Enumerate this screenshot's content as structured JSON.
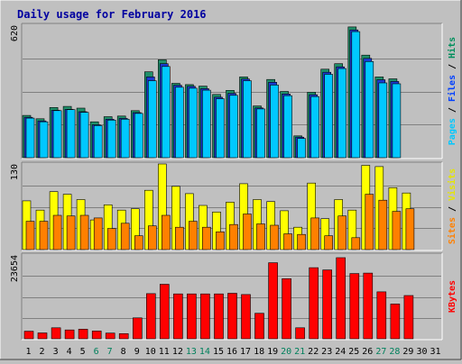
{
  "chart_data": {
    "title": "Daily usage for February 2016",
    "type": "bar",
    "categories": [
      "1",
      "2",
      "3",
      "4",
      "5",
      "6",
      "7",
      "8",
      "9",
      "10",
      "11",
      "12",
      "13",
      "14",
      "15",
      "16",
      "17",
      "18",
      "19",
      "20",
      "21",
      "22",
      "23",
      "24",
      "25",
      "26",
      "27",
      "28",
      "29",
      "30",
      "31"
    ],
    "weekend_days": [
      "6",
      "7",
      "13",
      "14",
      "20",
      "21",
      "27",
      "28"
    ],
    "panels": [
      {
        "name": "hits-files-pages",
        "ymax_label": "620",
        "ymax": 620,
        "axis_labels": [
          {
            "text": "Pages",
            "color": "#00c8ff"
          },
          {
            "text": "Files",
            "color": "#0040ff"
          },
          {
            "text": "Hits",
            "color": "#008f5c"
          }
        ],
        "series": [
          {
            "name": "Hits",
            "color": "#1f8f6a",
            "values": [
              198,
              182,
              235,
              240,
              232,
              168,
              192,
              195,
              220,
              402,
              458,
              348,
              342,
              335,
              296,
              315,
              378,
              242,
              366,
              310,
              102,
              306,
              414,
              440,
              612,
              480,
              378,
              369,
              0,
              0,
              0
            ]
          },
          {
            "name": "Files",
            "color": "#1a3ad0",
            "values": [
              189,
              172,
              222,
              226,
              215,
              154,
              180,
              184,
              211,
              378,
              440,
              339,
              334,
              323,
              283,
              301,
              368,
              233,
              353,
              298,
              96,
              295,
              400,
              425,
              598,
              465,
              365,
              357,
              0,
              0,
              0
            ]
          },
          {
            "name": "Pages",
            "color": "#00c8ff",
            "values": [
              185,
              168,
              220,
              225,
              212,
              150,
              176,
              180,
              207,
              360,
              427,
              330,
              325,
              316,
              276,
              292,
              360,
              228,
              340,
              290,
              90,
              286,
              390,
              417,
              590,
              450,
              350,
              346,
              0,
              0,
              0
            ]
          }
        ]
      },
      {
        "name": "visits-sites",
        "ymax_label": "130",
        "ymax": 130,
        "axis_labels": [
          {
            "text": "Sites",
            "color": "#ff8000"
          },
          {
            "text": "Visits",
            "color": "#e6e600"
          }
        ],
        "series": [
          {
            "name": "Visits",
            "color": "#ffff00",
            "values": [
              74,
              60,
              88,
              84,
              76,
              45,
              68,
              60,
              62,
              90,
              130,
              96,
              85,
              67,
              57,
              72,
              100,
              76,
              73,
              59,
              34,
              101,
              47,
              76,
              60,
              128,
              126,
              94,
              86,
              0,
              0
            ]
          },
          {
            "name": "Sites",
            "color": "#ff8000",
            "values": [
              43,
              43,
              52,
              51,
              52,
              48,
              32,
              40,
              21,
              36,
              52,
              34,
              43,
              34,
              27,
              38,
              54,
              39,
              37,
              24,
              23,
              48,
              21,
              51,
              18,
              84,
              75,
              58,
              62,
              0,
              0
            ]
          }
        ]
      },
      {
        "name": "kbytes",
        "ymax_label": "23654",
        "ymax": 23654,
        "axis_labels": [
          {
            "text": "KBytes",
            "color": "#ff0000"
          }
        ],
        "series": [
          {
            "name": "KBytes",
            "color": "#ff0000",
            "values": [
              2124,
              1650,
              3100,
              2500,
              2700,
              2180,
              1590,
              1450,
              5900,
              12750,
              15400,
              12660,
              12660,
              12660,
              12660,
              12850,
              12500,
              7190,
              21470,
              16960,
              3100,
              20080,
              19440,
              22900,
              18420,
              18550,
              13260,
              9830,
              12220,
              0,
              0
            ]
          }
        ]
      }
    ]
  }
}
